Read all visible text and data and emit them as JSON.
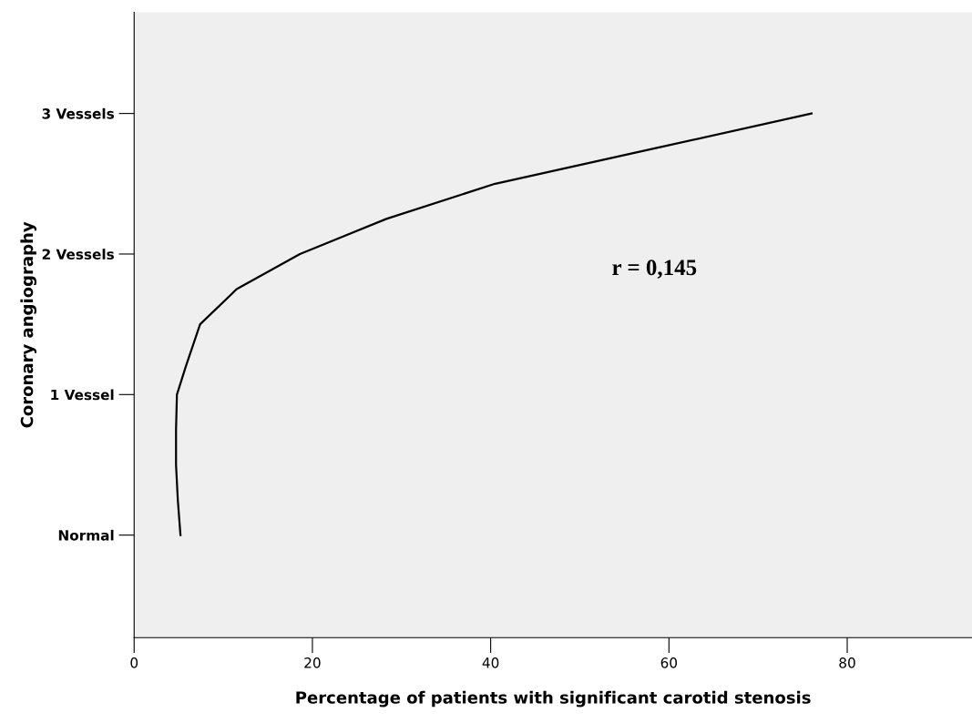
{
  "chart_data": {
    "type": "line",
    "xlabel": "Percentage of patients with significant carotid stenosis",
    "ylabel": "Coronary angiography",
    "x": [
      5.2,
      4.9,
      4.7,
      4.7,
      4.8,
      5.8,
      7.4,
      11.5,
      18.6,
      28.3,
      40.5,
      58.3,
      76
    ],
    "series": [
      {
        "color": "#000000",
        "values": [
          0,
          0.25,
          0.5,
          0.75,
          1,
          1.2,
          1.5,
          1.75,
          2,
          2.25,
          2.5,
          2.75,
          3
        ]
      }
    ],
    "xlim": [
      0,
      94
    ],
    "xticks": [
      0,
      20,
      40,
      60,
      80
    ],
    "ylim": [
      -0.73,
      3.72
    ],
    "yticks": [
      {
        "value": 0,
        "label": "Normal"
      },
      {
        "value": 1,
        "label": "1 Vessel"
      },
      {
        "value": 2,
        "label": "2 Vessels"
      },
      {
        "value": 3,
        "label": "3 Vessels"
      }
    ],
    "annotations": [
      "r = 0,145"
    ],
    "grid": false,
    "legend": false,
    "marker": "none",
    "line_style": "solid"
  }
}
